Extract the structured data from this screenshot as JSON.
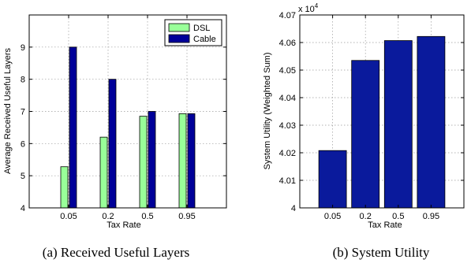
{
  "chart_data": [
    {
      "type": "bar",
      "caption": "(a) Received Useful Layers",
      "xlabel": "Tax Rate",
      "ylabel": "Average Received Useful Layers",
      "categories": [
        "0.05",
        "0.2",
        "0.5",
        "0.95"
      ],
      "series": [
        {
          "name": "DSL",
          "color": "#99ff99",
          "values": [
            5.28,
            6.2,
            6.85,
            6.93
          ]
        },
        {
          "name": "Cable",
          "color": "#000099",
          "values": [
            9.0,
            8.0,
            7.0,
            6.93
          ]
        }
      ],
      "ylim": [
        4,
        10
      ],
      "yticks": [
        "4",
        "5",
        "6",
        "7",
        "8",
        "9"
      ],
      "grid": true,
      "legend": "top-right"
    },
    {
      "type": "bar",
      "caption": "(b) System Utility",
      "xlabel": "Tax Rate",
      "ylabel": "System Utility (Weighted Sum)",
      "exponent_label": "x 10",
      "exponent_power": "4",
      "categories": [
        "0.05",
        "0.2",
        "0.5",
        "0.95"
      ],
      "series": [
        {
          "color": "#0a1a9c",
          "values": [
            4.0208,
            4.0535,
            4.0607,
            4.0622
          ]
        }
      ],
      "ylim": [
        4.0,
        4.07
      ],
      "yticks": [
        "4",
        "4.01",
        "4.02",
        "4.03",
        "4.04",
        "4.05",
        "4.06",
        "4.07"
      ],
      "grid": true
    }
  ]
}
